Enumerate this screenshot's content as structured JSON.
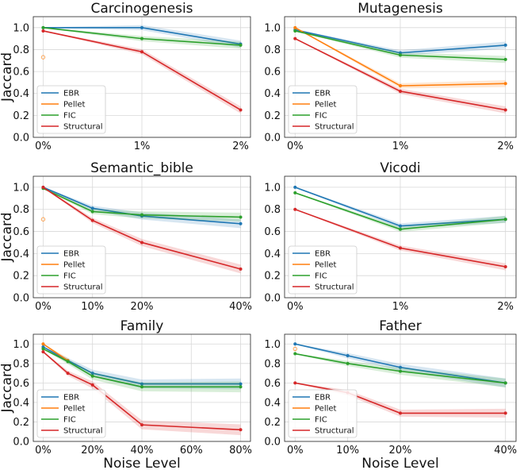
{
  "colors": {
    "EBR": "#1f77b4",
    "Pellet": "#ff7f0e",
    "FIC": "#2ca02c",
    "Structural": "#d62728"
  },
  "chart_data": [
    {
      "type": "line",
      "title": "Carcinogenesis",
      "ylabel": "Jaccard",
      "xlabel": "",
      "x": [
        0,
        1,
        2
      ],
      "xticks": [
        0,
        1,
        2
      ],
      "xtick_labels": [
        "0%",
        "1%",
        "2%"
      ],
      "xlim": [
        -0.1,
        2.1
      ],
      "ylim": [
        0,
        1.1
      ],
      "yticks": [
        "0.0",
        "0.2",
        "0.4",
        "0.6",
        "0.8",
        "1.0"
      ],
      "grid": true,
      "legend": "lower-left",
      "series": [
        {
          "name": "EBR",
          "values": [
            1.0,
            1.0,
            0.85
          ]
        },
        {
          "name": "Pellet",
          "values": [
            0.73,
            null,
            null
          ]
        },
        {
          "name": "FIC",
          "values": [
            1.0,
            0.9,
            0.84
          ]
        },
        {
          "name": "Structural",
          "values": [
            0.97,
            0.78,
            0.25
          ]
        }
      ]
    },
    {
      "type": "line",
      "title": "Mutagenesis",
      "ylabel": "",
      "xlabel": "",
      "x": [
        0,
        1,
        2
      ],
      "xticks": [
        0,
        1,
        2
      ],
      "xtick_labels": [
        "0%",
        "1%",
        "2%"
      ],
      "xlim": [
        -0.1,
        2.1
      ],
      "ylim": [
        0,
        1.1
      ],
      "yticks": [
        "0.0",
        "0.2",
        "0.4",
        "0.6",
        "0.8",
        "1.0"
      ],
      "grid": true,
      "legend": "lower-left",
      "series": [
        {
          "name": "EBR",
          "values": [
            0.98,
            0.77,
            0.84
          ]
        },
        {
          "name": "Pellet",
          "values": [
            1.0,
            0.47,
            0.49
          ]
        },
        {
          "name": "FIC",
          "values": [
            0.97,
            0.75,
            0.71
          ]
        },
        {
          "name": "Structural",
          "values": [
            0.9,
            0.42,
            0.25
          ]
        }
      ]
    },
    {
      "type": "line",
      "title": "Semantic_bible",
      "ylabel": "Jaccard",
      "xlabel": "",
      "x": [
        0,
        10,
        20,
        40
      ],
      "xticks": [
        0,
        10,
        20,
        40
      ],
      "xtick_labels": [
        "0%",
        "10%",
        "20%",
        "40%"
      ],
      "xlim": [
        -2,
        42
      ],
      "ylim": [
        0,
        1.1
      ],
      "yticks": [
        "0.0",
        "0.2",
        "0.4",
        "0.6",
        "0.8",
        "1.0"
      ],
      "grid": true,
      "legend": "lower-left",
      "series": [
        {
          "name": "EBR",
          "values": [
            1.0,
            0.81,
            0.74,
            0.67
          ]
        },
        {
          "name": "Pellet",
          "values": [
            0.71,
            null,
            null,
            null
          ]
        },
        {
          "name": "FIC",
          "values": [
            0.99,
            0.78,
            0.75,
            0.73
          ]
        },
        {
          "name": "Structural",
          "values": [
            1.0,
            0.7,
            0.5,
            0.26
          ]
        }
      ]
    },
    {
      "type": "line",
      "title": "Vicodi",
      "ylabel": "",
      "xlabel": "",
      "x": [
        0,
        1,
        2
      ],
      "xticks": [
        0,
        1,
        2
      ],
      "xtick_labels": [
        "0%",
        "1%",
        "2%"
      ],
      "xlim": [
        -0.1,
        2.1
      ],
      "ylim": [
        0,
        1.1
      ],
      "yticks": [
        "0.0",
        "0.2",
        "0.4",
        "0.6",
        "0.8",
        "1.0"
      ],
      "grid": true,
      "legend": "lower-left",
      "series": [
        {
          "name": "EBR",
          "values": [
            1.0,
            0.65,
            0.71
          ]
        },
        {
          "name": "Pellet",
          "values": [
            null,
            null,
            null
          ]
        },
        {
          "name": "FIC",
          "values": [
            0.95,
            0.62,
            0.71
          ]
        },
        {
          "name": "Structural",
          "values": [
            0.8,
            0.45,
            0.28
          ]
        }
      ]
    },
    {
      "type": "line",
      "title": "Family",
      "ylabel": "Jaccard",
      "xlabel": "Noise Level",
      "x": [
        0,
        10,
        20,
        40,
        80
      ],
      "xticks": [
        0,
        20,
        40,
        60,
        80
      ],
      "xtick_labels": [
        "0%",
        "20%",
        "40%",
        "60%",
        "80%"
      ],
      "xlim": [
        -4,
        84
      ],
      "ylim": [
        0,
        1.1
      ],
      "yticks": [
        "0.0",
        "0.2",
        "0.4",
        "0.6",
        "0.8",
        "1.0"
      ],
      "grid": true,
      "legend": "lower-left",
      "series": [
        {
          "name": "EBR",
          "values": [
            0.97,
            0.83,
            0.7,
            0.59,
            0.59
          ]
        },
        {
          "name": "Pellet",
          "values": [
            1.0,
            0.83,
            null,
            null,
            null
          ]
        },
        {
          "name": "FIC",
          "values": [
            0.95,
            0.82,
            0.67,
            0.56,
            0.56
          ]
        },
        {
          "name": "Structural",
          "values": [
            0.92,
            0.7,
            0.58,
            0.17,
            0.12
          ]
        }
      ]
    },
    {
      "type": "line",
      "title": "Father",
      "ylabel": "",
      "xlabel": "Noise Level",
      "x": [
        0,
        10,
        20,
        40
      ],
      "xticks": [
        0,
        10,
        20,
        40
      ],
      "xtick_labels": [
        "0%",
        "10%",
        "20%",
        "40%"
      ],
      "xlim": [
        -2,
        42
      ],
      "ylim": [
        0,
        1.1
      ],
      "yticks": [
        "0.0",
        "0.2",
        "0.4",
        "0.6",
        "0.8",
        "1.0"
      ],
      "grid": true,
      "legend": "lower-left",
      "series": [
        {
          "name": "EBR",
          "values": [
            1.0,
            0.88,
            0.76,
            0.6
          ]
        },
        {
          "name": "Pellet",
          "values": [
            0.95,
            null,
            null,
            null
          ]
        },
        {
          "name": "FIC",
          "values": [
            0.9,
            0.8,
            0.72,
            0.6
          ]
        },
        {
          "name": "Structural",
          "values": [
            0.6,
            0.5,
            0.29,
            0.29
          ]
        }
      ]
    }
  ]
}
